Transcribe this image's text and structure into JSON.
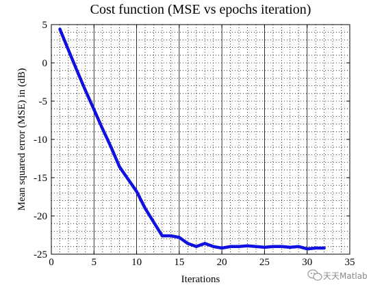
{
  "chart_data": {
    "type": "line",
    "title": "Cost function (MSE vs epochs iteration)",
    "xlabel": "Iterations",
    "ylabel": "Mean squared error (MSE) in (dB)",
    "xlim": [
      0,
      35
    ],
    "ylim": [
      -25,
      5
    ],
    "xticks": [
      0,
      5,
      10,
      15,
      20,
      25,
      30,
      35
    ],
    "yticks": [
      5,
      0,
      -5,
      -10,
      -15,
      -20,
      -25
    ],
    "grid": "major solid vertical lines, dotted minor grid",
    "series": [
      {
        "color": "#1010e0",
        "x": [
          1,
          2,
          3,
          4,
          5,
          6,
          7,
          8,
          9,
          10,
          11,
          12,
          13,
          14,
          15,
          16,
          17,
          18,
          19,
          20,
          21,
          22,
          23,
          24,
          25,
          26,
          27,
          28,
          29,
          30,
          31,
          32
        ],
        "y": [
          4.4,
          1.7,
          -1.0,
          -3.6,
          -6.1,
          -8.6,
          -11.0,
          -13.6,
          -15.2,
          -16.8,
          -19.0,
          -20.8,
          -22.6,
          -22.6,
          -22.8,
          -23.6,
          -24.0,
          -23.6,
          -24.0,
          -24.2,
          -24.0,
          -24.0,
          -23.9,
          -24.0,
          -24.1,
          -24.0,
          -24.0,
          -24.1,
          -24.0,
          -24.3,
          -24.2,
          -24.2
        ]
      }
    ]
  },
  "watermark": {
    "text": "天天Matlab",
    "icon": "wechat-icon"
  }
}
